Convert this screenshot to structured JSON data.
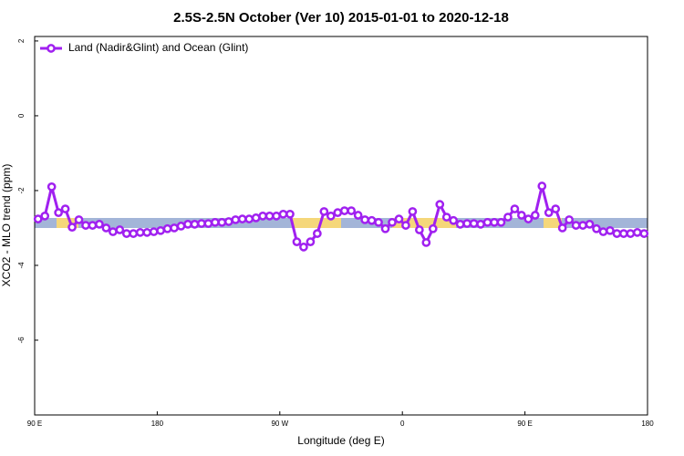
{
  "chart_data": {
    "type": "line",
    "title": "2.5S-2.5N October (Ver 10)   2015-01-01 to 2020-12-18",
    "x_label": "Longitude (deg E)",
    "y_label": "XCO2 - MLO trend (ppm)",
    "xlim": [
      90,
      540
    ],
    "xticks": [
      {
        "value": 90,
        "label": "90 E"
      },
      180,
      {
        "value": 270,
        "label": "90 W"
      },
      {
        "value": 360,
        "label": "0"
      },
      {
        "value": 450,
        "label": "90 E"
      },
      {
        "value": 540,
        "label": "180"
      }
    ],
    "ylim": [
      -8,
      2.12
    ],
    "yticks": [
      2,
      0,
      -2,
      -4,
      -6
    ],
    "legend": "top-left",
    "x": [
      92.5,
      97.5,
      102.5,
      107.5,
      112.5,
      117.5,
      122.5,
      127.5,
      132.5,
      137.5,
      142.5,
      147.5,
      152.5,
      157.5,
      162.5,
      167.5,
      172.5,
      177.5,
      182.5,
      187.5,
      192.5,
      197.5,
      202.5,
      207.5,
      212.5,
      217.5,
      222.5,
      227.5,
      232.5,
      237.5,
      242.5,
      247.5,
      252.5,
      257.5,
      262.5,
      267.5,
      272.5,
      277.5,
      282.5,
      287.5,
      292.5,
      297.5,
      302.5,
      307.5,
      312.5,
      317.5,
      322.5,
      327.5,
      332.5,
      337.5,
      342.5,
      347.5,
      352.5,
      357.5,
      362.5,
      367.5,
      372.5,
      377.5,
      382.5,
      387.5,
      392.5,
      397.5,
      402.5,
      407.5,
      412.5,
      417.5,
      422.5,
      427.5,
      432.5,
      437.5,
      442.5,
      447.5,
      452.5,
      457.5,
      462.5,
      467.5,
      472.5,
      477.5,
      482.5,
      487.5,
      492.5,
      497.5,
      502.5,
      507.5,
      512.5,
      517.5,
      522.5,
      527.5,
      532.5,
      537.5
    ],
    "series": [
      {
        "name": "Land (Nadir&Glint) and Ocean (Glint)",
        "color": "#a020f0",
        "values": [
          -2.76,
          -2.68,
          -1.9,
          -2.59,
          -2.49,
          -2.98,
          -2.78,
          -2.93,
          -2.93,
          -2.9,
          -3.0,
          -3.1,
          -3.05,
          -3.15,
          -3.15,
          -3.12,
          -3.12,
          -3.1,
          -3.07,
          -3.02,
          -3.0,
          -2.95,
          -2.9,
          -2.9,
          -2.88,
          -2.88,
          -2.85,
          -2.85,
          -2.83,
          -2.78,
          -2.76,
          -2.76,
          -2.73,
          -2.68,
          -2.68,
          -2.68,
          -2.63,
          -2.63,
          -3.37,
          -3.51,
          -3.37,
          -3.15,
          -2.56,
          -2.68,
          -2.59,
          -2.54,
          -2.54,
          -2.66,
          -2.78,
          -2.8,
          -2.85,
          -3.02,
          -2.85,
          -2.76,
          -2.93,
          -2.56,
          -3.05,
          -3.39,
          -3.02,
          -2.37,
          -2.71,
          -2.8,
          -2.9,
          -2.88,
          -2.88,
          -2.9,
          -2.85,
          -2.85,
          -2.85,
          -2.71,
          -2.49,
          -2.66,
          -2.76,
          -2.66,
          -1.88,
          -2.59,
          -2.49,
          -3.0,
          -2.78,
          -2.93,
          -2.93,
          -2.9,
          -3.02,
          -3.1,
          -3.07,
          -3.15,
          -3.15,
          -3.15,
          -3.12,
          -3.15
        ]
      }
    ]
  }
}
